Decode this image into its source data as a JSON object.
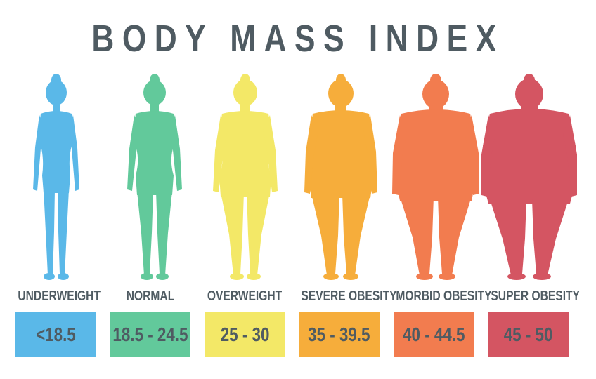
{
  "title": "BODY MASS INDEX",
  "categories": [
    {
      "label": "UNDERWEIGHT",
      "range": "<18.5",
      "color": "#5ab8e8"
    },
    {
      "label": "NORMAL",
      "range": "18.5 - 24.5",
      "color": "#62c99b"
    },
    {
      "label": "OVERWEIGHT",
      "range": "25 - 30",
      "color": "#f3e867"
    },
    {
      "label": "SEVERE OBESITY",
      "range": "35 - 39.5",
      "color": "#f6ad3b"
    },
    {
      "label": "MORBID OBESITY",
      "range": "40 - 44.5",
      "color": "#f27c4f"
    },
    {
      "label": "SUPER OBESITY",
      "range": "45 - 50",
      "color": "#d45562"
    }
  ]
}
